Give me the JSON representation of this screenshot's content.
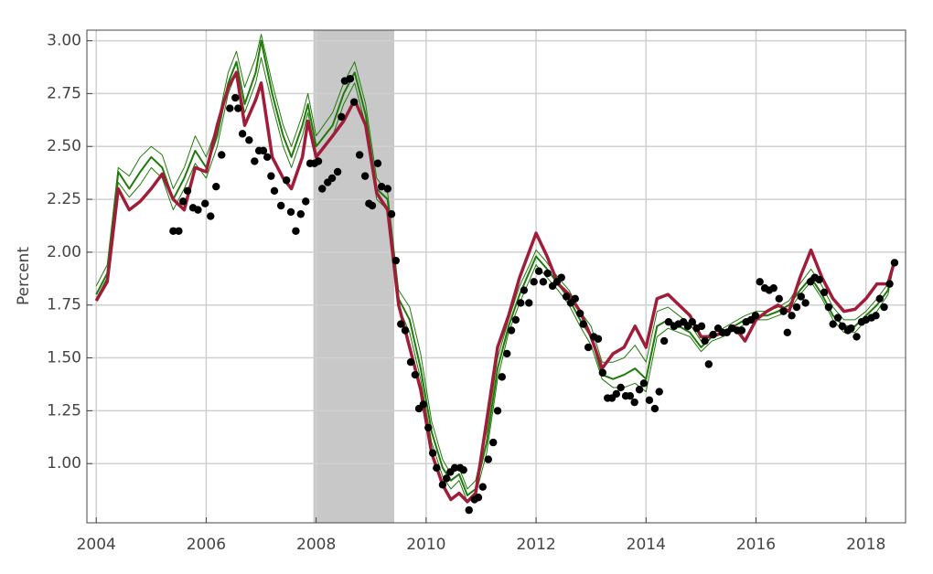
{
  "chart_data": {
    "type": "line",
    "ylabel": "Percent",
    "xlim": [
      2003.83,
      2018.72
    ],
    "ylim": [
      0.72,
      3.05
    ],
    "xticks": [
      2004,
      2006,
      2008,
      2010,
      2012,
      2014,
      2016,
      2018
    ],
    "yticks": [
      {
        "value": 1,
        "label": "1.00"
      },
      {
        "value": 1.25,
        "label": "1.25"
      },
      {
        "value": 1.5,
        "label": "1.50"
      },
      {
        "value": 1.75,
        "label": "1.75"
      },
      {
        "value": 2,
        "label": "2.00"
      },
      {
        "value": 2.25,
        "label": "2.25"
      },
      {
        "value": 2.5,
        "label": "2.50"
      },
      {
        "value": 2.75,
        "label": "2.75"
      },
      {
        "value": 3,
        "label": "3.00"
      }
    ],
    "grid": true,
    "shade": {
      "x": [
        2007.95,
        2009.42
      ],
      "color": "#c8c8c8"
    },
    "x": [
      2004.0,
      2004.2,
      2004.4,
      2004.6,
      2004.8,
      2005.0,
      2005.2,
      2005.4,
      2005.6,
      2005.8,
      2006.0,
      2006.2,
      2006.4,
      2006.55,
      2006.7,
      2006.9,
      2007.0,
      2007.2,
      2007.4,
      2007.55,
      2007.75,
      2007.85,
      2008.0,
      2008.3,
      2008.5,
      2008.7,
      2008.9,
      2009.1,
      2009.3,
      2009.5,
      2009.7,
      2009.9,
      2010.1,
      2010.3,
      2010.45,
      2010.6,
      2010.75,
      2010.9,
      2011.1,
      2011.3,
      2011.5,
      2011.7,
      2011.9,
      2012.0,
      2012.2,
      2012.4,
      2012.6,
      2012.8,
      2013.0,
      2013.2,
      2013.4,
      2013.6,
      2013.8,
      2014.0,
      2014.2,
      2014.4,
      2014.6,
      2014.8,
      2015.0,
      2015.2,
      2015.4,
      2015.6,
      2015.8,
      2016.0,
      2016.2,
      2016.4,
      2016.6,
      2016.8,
      2017.0,
      2017.2,
      2017.4,
      2017.6,
      2017.8,
      2018.0,
      2018.2,
      2018.4,
      2018.5
    ],
    "series": [
      {
        "color": "#1f7a0a",
        "linewidth": 1,
        "values": [
          1.84,
          1.94,
          2.4,
          2.36,
          2.45,
          2.5,
          2.46,
          2.3,
          2.4,
          2.55,
          2.45,
          2.6,
          2.85,
          2.95,
          2.78,
          2.92,
          3.03,
          2.8,
          2.6,
          2.5,
          2.65,
          2.75,
          2.55,
          2.66,
          2.8,
          2.9,
          2.7,
          2.35,
          2.28,
          1.82,
          1.74,
          1.52,
          1.2,
          1.02,
          0.95,
          0.98,
          0.88,
          0.92,
          1.15,
          1.5,
          1.68,
          1.84,
          1.95,
          2.01,
          1.95,
          1.88,
          1.82,
          1.72,
          1.65,
          1.48,
          1.48,
          1.5,
          1.56,
          1.48,
          1.72,
          1.74,
          1.7,
          1.66,
          1.58,
          1.62,
          1.64,
          1.67,
          1.7,
          1.72,
          1.72,
          1.74,
          1.77,
          1.85,
          1.92,
          1.84,
          1.74,
          1.68,
          1.68,
          1.72,
          1.78,
          1.85,
          1.95
        ]
      },
      {
        "color": "#1f7a0a",
        "linewidth": 1,
        "values": [
          1.78,
          1.88,
          2.33,
          2.26,
          2.32,
          2.4,
          2.35,
          2.2,
          2.3,
          2.42,
          2.35,
          2.5,
          2.75,
          2.85,
          2.66,
          2.8,
          2.92,
          2.7,
          2.5,
          2.4,
          2.55,
          2.66,
          2.46,
          2.55,
          2.7,
          2.8,
          2.6,
          2.25,
          2.2,
          1.74,
          1.62,
          1.4,
          1.1,
          0.94,
          0.88,
          0.92,
          0.82,
          0.85,
          1.05,
          1.4,
          1.62,
          1.76,
          1.88,
          1.94,
          1.88,
          1.82,
          1.75,
          1.65,
          1.56,
          1.4,
          1.36,
          1.36,
          1.38,
          1.34,
          1.6,
          1.64,
          1.62,
          1.6,
          1.53,
          1.58,
          1.6,
          1.63,
          1.66,
          1.68,
          1.68,
          1.7,
          1.72,
          1.8,
          1.86,
          1.78,
          1.68,
          1.62,
          1.62,
          1.68,
          1.72,
          1.8,
          1.93
        ]
      },
      {
        "color": "#1f7a0a",
        "linewidth": 2,
        "values": [
          1.8,
          1.9,
          2.38,
          2.3,
          2.38,
          2.45,
          2.4,
          2.25,
          2.35,
          2.48,
          2.4,
          2.55,
          2.8,
          2.9,
          2.7,
          2.85,
          3.0,
          2.75,
          2.55,
          2.45,
          2.6,
          2.7,
          2.5,
          2.6,
          2.75,
          2.85,
          2.65,
          2.3,
          2.25,
          1.78,
          1.68,
          1.45,
          1.15,
          0.98,
          0.92,
          0.95,
          0.85,
          0.88,
          1.1,
          1.45,
          1.65,
          1.8,
          1.92,
          1.98,
          1.92,
          1.85,
          1.78,
          1.68,
          1.6,
          1.42,
          1.4,
          1.42,
          1.45,
          1.4,
          1.65,
          1.68,
          1.65,
          1.62,
          1.55,
          1.6,
          1.62,
          1.65,
          1.68,
          1.7,
          1.7,
          1.72,
          1.75,
          1.82,
          1.88,
          1.8,
          1.7,
          1.65,
          1.65,
          1.7,
          1.75,
          1.82,
          1.94
        ]
      },
      {
        "color": "#a01d3a",
        "linewidth": 3.5,
        "values": [
          1.77,
          1.86,
          2.3,
          2.2,
          2.24,
          2.3,
          2.37,
          2.25,
          2.2,
          2.4,
          2.38,
          2.6,
          2.78,
          2.85,
          2.6,
          2.72,
          2.8,
          2.45,
          2.35,
          2.3,
          2.45,
          2.62,
          2.45,
          2.55,
          2.62,
          2.72,
          2.6,
          2.28,
          2.2,
          1.75,
          1.55,
          1.35,
          1.05,
          0.9,
          0.83,
          0.86,
          0.82,
          0.86,
          1.2,
          1.55,
          1.7,
          1.88,
          2.02,
          2.09,
          1.98,
          1.85,
          1.8,
          1.72,
          1.6,
          1.45,
          1.52,
          1.55,
          1.65,
          1.55,
          1.78,
          1.8,
          1.75,
          1.7,
          1.6,
          1.6,
          1.62,
          1.65,
          1.58,
          1.68,
          1.72,
          1.75,
          1.72,
          1.88,
          2.01,
          1.88,
          1.78,
          1.72,
          1.73,
          1.78,
          1.85,
          1.85,
          1.94
        ]
      },
      {
        "color": "#000000",
        "marker": "dot",
        "x": [
          2005.4,
          2005.5,
          2005.58,
          2005.66,
          2005.76,
          2005.85,
          2005.98,
          2006.08,
          2006.18,
          2006.28,
          2006.43,
          2006.53,
          2006.58,
          2006.66,
          2006.78,
          2006.88,
          2006.96,
          2007.04,
          2007.11,
          2007.18,
          2007.24,
          2007.36,
          2007.46,
          2007.54,
          2007.63,
          2007.72,
          2007.81,
          2007.89,
          2007.97,
          2008.04,
          2008.11,
          2008.21,
          2008.29,
          2008.39,
          2008.46,
          2008.52,
          2008.62,
          2008.69,
          2008.79,
          2008.89,
          2008.96,
          2009.02,
          2009.12,
          2009.19,
          2009.3,
          2009.37,
          2009.45,
          2009.54,
          2009.62,
          2009.72,
          2009.8,
          2009.87,
          2009.95,
          2010.04,
          2010.12,
          2010.19,
          2010.3,
          2010.37,
          2010.44,
          2010.52,
          2010.62,
          2010.68,
          2010.78,
          2010.88,
          2010.95,
          2011.03,
          2011.13,
          2011.22,
          2011.3,
          2011.38,
          2011.47,
          2011.55,
          2011.63,
          2011.72,
          2011.78,
          2011.87,
          2011.96,
          2012.05,
          2012.13,
          2012.21,
          2012.3,
          2012.38,
          2012.46,
          2012.55,
          2012.63,
          2012.71,
          2012.8,
          2012.86,
          2012.95,
          2013.05,
          2013.13,
          2013.21,
          2013.3,
          2013.38,
          2013.46,
          2013.54,
          2013.63,
          2013.71,
          2013.79,
          2013.88,
          2013.96,
          2014.06,
          2014.16,
          2014.24,
          2014.33,
          2014.41,
          2014.51,
          2014.59,
          2014.68,
          2014.76,
          2014.84,
          2014.92,
          2015.01,
          2015.07,
          2015.14,
          2015.22,
          2015.31,
          2015.39,
          2015.47,
          2015.56,
          2015.66,
          2015.74,
          2015.82,
          2015.91,
          2015.99,
          2016.07,
          2016.16,
          2016.24,
          2016.32,
          2016.42,
          2016.5,
          2016.57,
          2016.65,
          2016.74,
          2016.82,
          2016.9,
          2016.99,
          2017.07,
          2017.15,
          2017.24,
          2017.32,
          2017.4,
          2017.49,
          2017.57,
          2017.67,
          2017.73,
          2017.83,
          2017.92,
          2018.0,
          2018.1,
          2018.18,
          2018.25,
          2018.33,
          2018.43,
          2018.52
        ],
        "values": [
          2.1,
          2.1,
          2.24,
          2.29,
          2.21,
          2.2,
          2.23,
          2.17,
          2.31,
          2.46,
          2.68,
          2.73,
          2.68,
          2.56,
          2.53,
          2.43,
          2.48,
          2.48,
          2.45,
          2.36,
          2.29,
          2.22,
          2.34,
          2.19,
          2.1,
          2.18,
          2.24,
          2.42,
          2.42,
          2.43,
          2.3,
          2.33,
          2.35,
          2.38,
          2.64,
          2.81,
          2.82,
          2.71,
          2.46,
          2.36,
          2.23,
          2.22,
          2.42,
          2.31,
          2.3,
          2.18,
          1.96,
          1.66,
          1.63,
          1.48,
          1.42,
          1.26,
          1.28,
          1.17,
          1.05,
          0.98,
          0.9,
          0.93,
          0.96,
          0.98,
          0.98,
          0.97,
          0.78,
          0.83,
          0.84,
          0.89,
          1.02,
          1.1,
          1.25,
          1.41,
          1.52,
          1.63,
          1.68,
          1.76,
          1.82,
          1.76,
          1.86,
          1.91,
          1.86,
          1.9,
          1.84,
          1.86,
          1.88,
          1.79,
          1.76,
          1.78,
          1.71,
          1.66,
          1.55,
          1.6,
          1.59,
          1.43,
          1.31,
          1.31,
          1.33,
          1.36,
          1.32,
          1.32,
          1.29,
          1.35,
          1.38,
          1.3,
          1.26,
          1.34,
          1.58,
          1.67,
          1.65,
          1.66,
          1.67,
          1.65,
          1.67,
          1.64,
          1.65,
          1.58,
          1.47,
          1.61,
          1.64,
          1.62,
          1.62,
          1.64,
          1.63,
          1.63,
          1.67,
          1.68,
          1.7,
          1.86,
          1.83,
          1.82,
          1.83,
          1.78,
          1.72,
          1.62,
          1.7,
          1.74,
          1.79,
          1.76,
          1.86,
          1.88,
          1.87,
          1.81,
          1.74,
          1.66,
          1.69,
          1.65,
          1.63,
          1.64,
          1.6,
          1.67,
          1.68,
          1.69,
          1.7,
          1.78,
          1.74,
          1.85,
          1.95
        ]
      }
    ]
  }
}
